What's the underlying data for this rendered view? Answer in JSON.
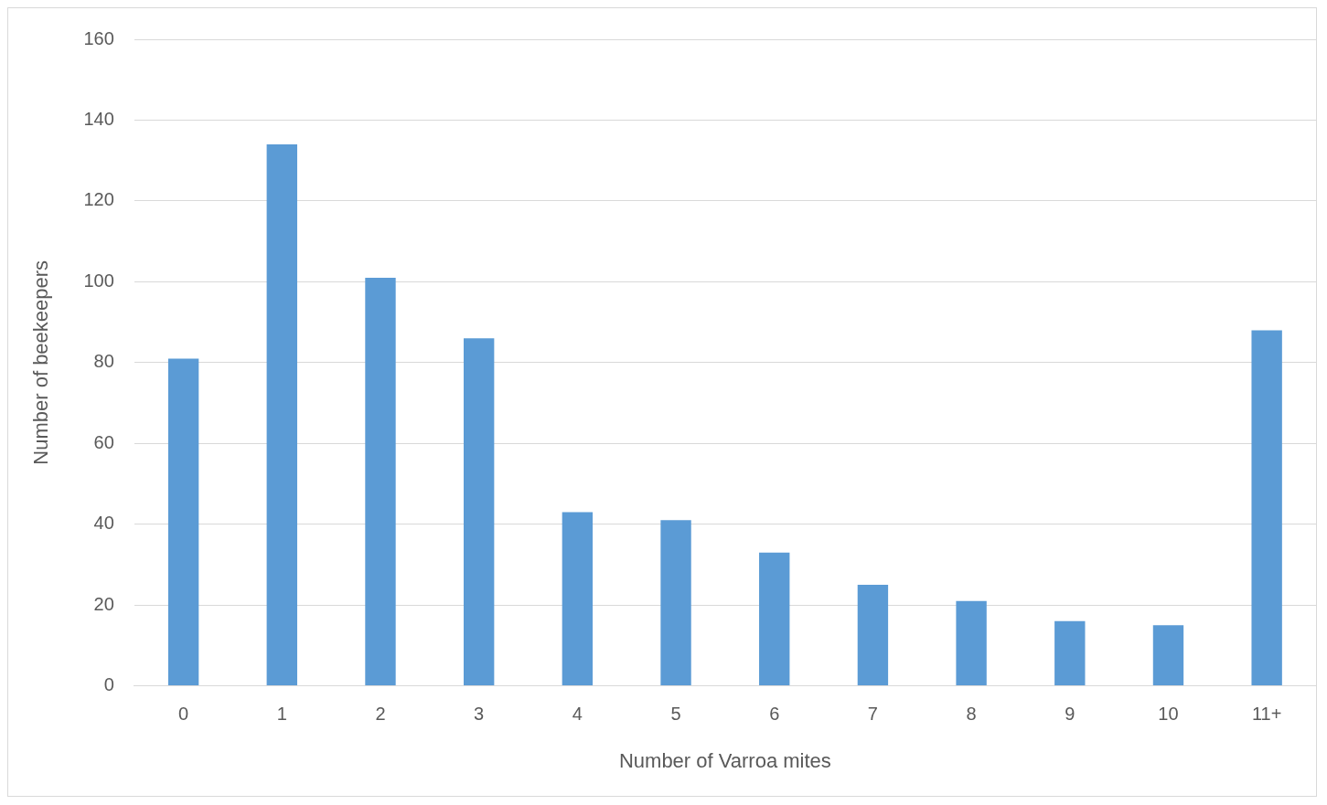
{
  "chart_data": {
    "type": "bar",
    "xlabel": "Number of Varroa mites",
    "ylabel": "Number of beekeepers",
    "categories": [
      "0",
      "1",
      "2",
      "3",
      "4",
      "5",
      "6",
      "7",
      "8",
      "9",
      "10",
      "11+"
    ],
    "values": [
      81,
      134,
      101,
      86,
      43,
      41,
      33,
      25,
      21,
      16,
      15,
      88
    ],
    "color": "#5b9bd5",
    "ylim": [
      0,
      160
    ],
    "yticks": [
      0,
      20,
      40,
      60,
      80,
      100,
      120,
      140,
      160
    ],
    "grid": "y",
    "legend": false
  }
}
